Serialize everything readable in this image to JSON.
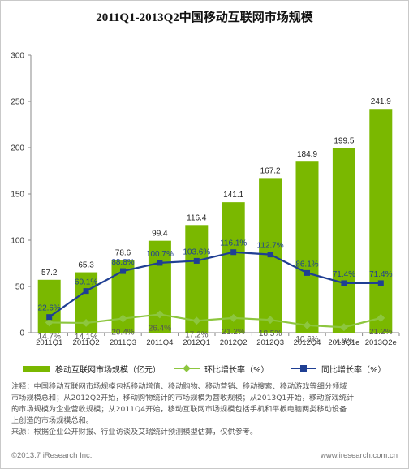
{
  "chart_data": {
    "type": "bar",
    "title": "2011Q1-2013Q2中国移动互联网市场规模",
    "categories": [
      "2011Q1",
      "2011Q2",
      "2011Q3",
      "2011Q4",
      "2012Q1",
      "2012Q2",
      "2012Q3",
      "2012Q4",
      "2013Q1e",
      "2013Q2e"
    ],
    "ylim": [
      0,
      300
    ],
    "yticks": [
      0,
      50,
      100,
      150,
      200,
      250,
      300
    ],
    "grid": false,
    "legend_position": "bottom",
    "series": [
      {
        "name": "移动互联网市场规模（亿元）",
        "type": "bar",
        "color": "#7ab800",
        "values": [
          57.2,
          65.3,
          78.6,
          99.4,
          116.4,
          141.1,
          167.2,
          184.9,
          199.5,
          241.9
        ],
        "labels": [
          "57.2",
          "65.3",
          "78.6",
          "99.4",
          "116.4",
          "141.1",
          "167.2",
          "184.9",
          "199.5",
          "241.9"
        ]
      },
      {
        "name": "环比增长率（%）",
        "type": "line",
        "color": "#8dc63f",
        "values": [
          14.7,
          14.1,
          20.4,
          26.4,
          17.2,
          21.2,
          18.5,
          10.6,
          7.9,
          21.2
        ],
        "labels": [
          "14.7%",
          "14.1%",
          "20.4%",
          "26.4%",
          "17.2%",
          "21.2%",
          "18.5%",
          "10.6%",
          "7.9%",
          "21.2%"
        ]
      },
      {
        "name": "同比增长率（%）",
        "type": "line",
        "color": "#1f3f93",
        "values": [
          22.6,
          60.1,
          88.8,
          100.7,
          103.6,
          116.1,
          112.7,
          86.1,
          71.4,
          71.4
        ],
        "labels": [
          "22.6%",
          "60.1%",
          "88.8%",
          "100.7%",
          "103.6%",
          "116.1%",
          "112.7%",
          "86.1%",
          "71.4%",
          "71.4%"
        ]
      }
    ]
  },
  "legend": {
    "bar_label": "移动互联网市场规模（亿元）",
    "qoq_label": "环比增长率（%）",
    "yoy_label": "同比增长率（%）"
  },
  "notes": {
    "line1": "注释：中国移动互联网市场规模包括移动增值、移动购物、移动营销、移动搜索、移动游戏等细分领域",
    "line2": "市场规模总和；从2012Q2开始，移动购物统计的市场规模为营收规模；从2013Q1开始，移动游戏统计",
    "line3": "的市场规模为企业营收规模；从2011Q4开始，移动互联网市场规模包括手机和平板电脑两类移动设备",
    "line4": "上创造的市场规模总和。",
    "source": "来源：根据企业公开财报、行业访谈及艾瑞统计预测模型估算，仅供参考。"
  },
  "footer": {
    "copyright": "©2013.7 iResearch Inc.",
    "website": "www.iresearch.com.cn"
  }
}
